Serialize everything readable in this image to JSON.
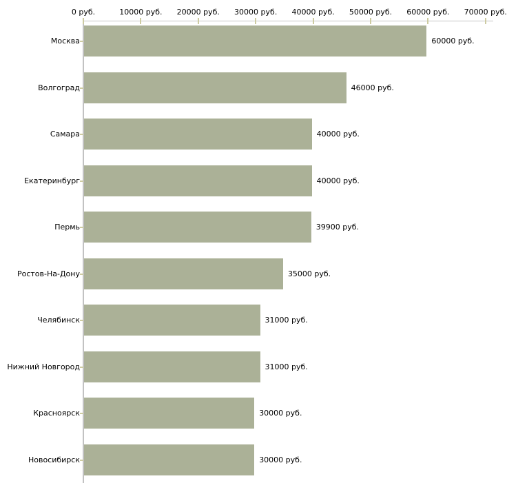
{
  "chart_data": {
    "type": "bar",
    "orientation": "horizontal",
    "title": "",
    "xlabel": "",
    "ylabel": "",
    "grid": false,
    "legend": null,
    "categories": [
      "Москва",
      "Волгоград",
      "Самара",
      "Екатеринбург",
      "Пермь",
      "Ростов-На-Дону",
      "Челябинск",
      "Нижний Новгород",
      "Красноярск",
      "Новосибирск"
    ],
    "values": [
      60000,
      46000,
      40000,
      40000,
      39900,
      35000,
      31000,
      31000,
      30000,
      30000
    ],
    "value_labels": [
      "60000 руб.",
      "46000 руб.",
      "40000 руб.",
      "40000 руб.",
      "39900 руб.",
      "35000 руб.",
      "31000 руб.",
      "31000 руб.",
      "30000 руб.",
      "30000 руб."
    ],
    "x_ticks": [
      0,
      10000,
      20000,
      30000,
      40000,
      50000,
      60000,
      70000
    ],
    "x_tick_labels": [
      "0 руб.",
      "10000 руб.",
      "20000 руб.",
      "30000 руб.",
      "40000 руб.",
      "50000 руб.",
      "60000 руб.",
      "70000 руб."
    ],
    "xlim": [
      0,
      70000
    ],
    "colors": {
      "bar": "#abb197",
      "axis": "#c2c2c2",
      "tick_mark": "#cdcba1",
      "text": "#000000",
      "background": "#ffffff"
    }
  }
}
